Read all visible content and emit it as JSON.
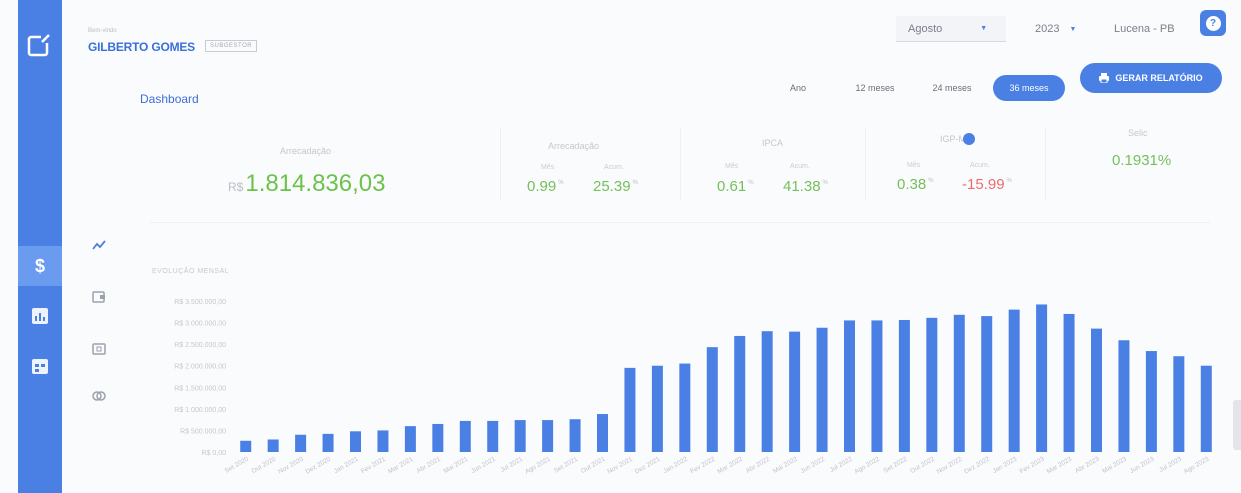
{
  "header": {
    "small_text": "Bem-vindo",
    "user_name": "GILBERTO GOMES",
    "role": "SUBGESTOR",
    "month": "Agosto",
    "year": "2023",
    "city": "Lucena - PB",
    "help_icon": "question-icon"
  },
  "nav": {
    "breadcrumb": "Dashboard",
    "periods": [
      "Ano",
      "12 meses",
      "24 meses",
      "36 meses"
    ],
    "active_period": "36 meses",
    "report_label": "GERAR RELATÓRIO",
    "accent": "#4a80e4"
  },
  "stats": {
    "total": {
      "label": "Arrecadação",
      "currency": "R$",
      "value": "1.814.836,03"
    },
    "s1": {
      "label": "Arrecadação",
      "sub_a": "Mês",
      "sub_b": "Acum.",
      "a": "0.99",
      "b": "25.39"
    },
    "s2": {
      "label": "IPCA",
      "sub_a": "Mês",
      "sub_b": "Acum.",
      "a": "0.61",
      "b": "41.38"
    },
    "s3": {
      "label": "IGP-M",
      "sub_a": "Mês",
      "sub_b": "Acum.",
      "a": "0.38",
      "b": "-15.99"
    },
    "s4": {
      "label": "Selic",
      "value": "0.1931%"
    },
    "positive_color": "#74c05a",
    "negative_color": "#ef6b6b"
  },
  "side_icons": [
    "trend-icon",
    "wallet-icon",
    "card-icon",
    "coins-icon"
  ],
  "rail_icons": [
    "logo-icon",
    "dollar-icon",
    "bar-chart-icon",
    "calendar-icon"
  ],
  "chart_data": {
    "type": "bar",
    "title": "EVOLUÇÃO MENSAL",
    "ylim": [
      0,
      3500000
    ],
    "yticks": [
      "R$ 0,00",
      "R$ 500.000,00",
      "R$ 1.000.000,00",
      "R$ 1.500.000,00",
      "R$ 2.000.000,00",
      "R$ 2.500.000,00",
      "R$ 3.000.000,00",
      "R$ 3.500.000,00"
    ],
    "categories": [
      "Set 2020",
      "Out 2020",
      "Nov 2020",
      "Dez 2020",
      "Jan 2021",
      "Fev 2021",
      "Mar 2021",
      "Abr 2021",
      "Mai 2021",
      "Jun 2021",
      "Jul 2021",
      "Ago 2021",
      "Set 2021",
      "Out 2021",
      "Nov 2021",
      "Dez 2021",
      "Jan 2022",
      "Fev 2022",
      "Mar 2022",
      "Abr 2022",
      "Mai 2022",
      "Jun 2022",
      "Jul 2022",
      "Ago 2022",
      "Set 2022",
      "Out 2022",
      "Nov 2022",
      "Dez 2022",
      "Jan 2023",
      "Fev 2023",
      "Mar 2023",
      "Abr 2023",
      "Mai 2023",
      "Jun 2023",
      "Jul 2023",
      "Ago 2023"
    ],
    "values": [
      260000,
      290000,
      400000,
      420000,
      480000,
      500000,
      600000,
      650000,
      720000,
      720000,
      740000,
      740000,
      760000,
      880000,
      1950000,
      2000000,
      2050000,
      2430000,
      2690000,
      2800000,
      2790000,
      2880000,
      3050000,
      3050000,
      3060000,
      3110000,
      3180000,
      3150000,
      3300000,
      3420000,
      3200000,
      2860000,
      2590000,
      2340000,
      2220000,
      2000000
    ],
    "bar_color": "#4a80e4",
    "grid": false
  }
}
